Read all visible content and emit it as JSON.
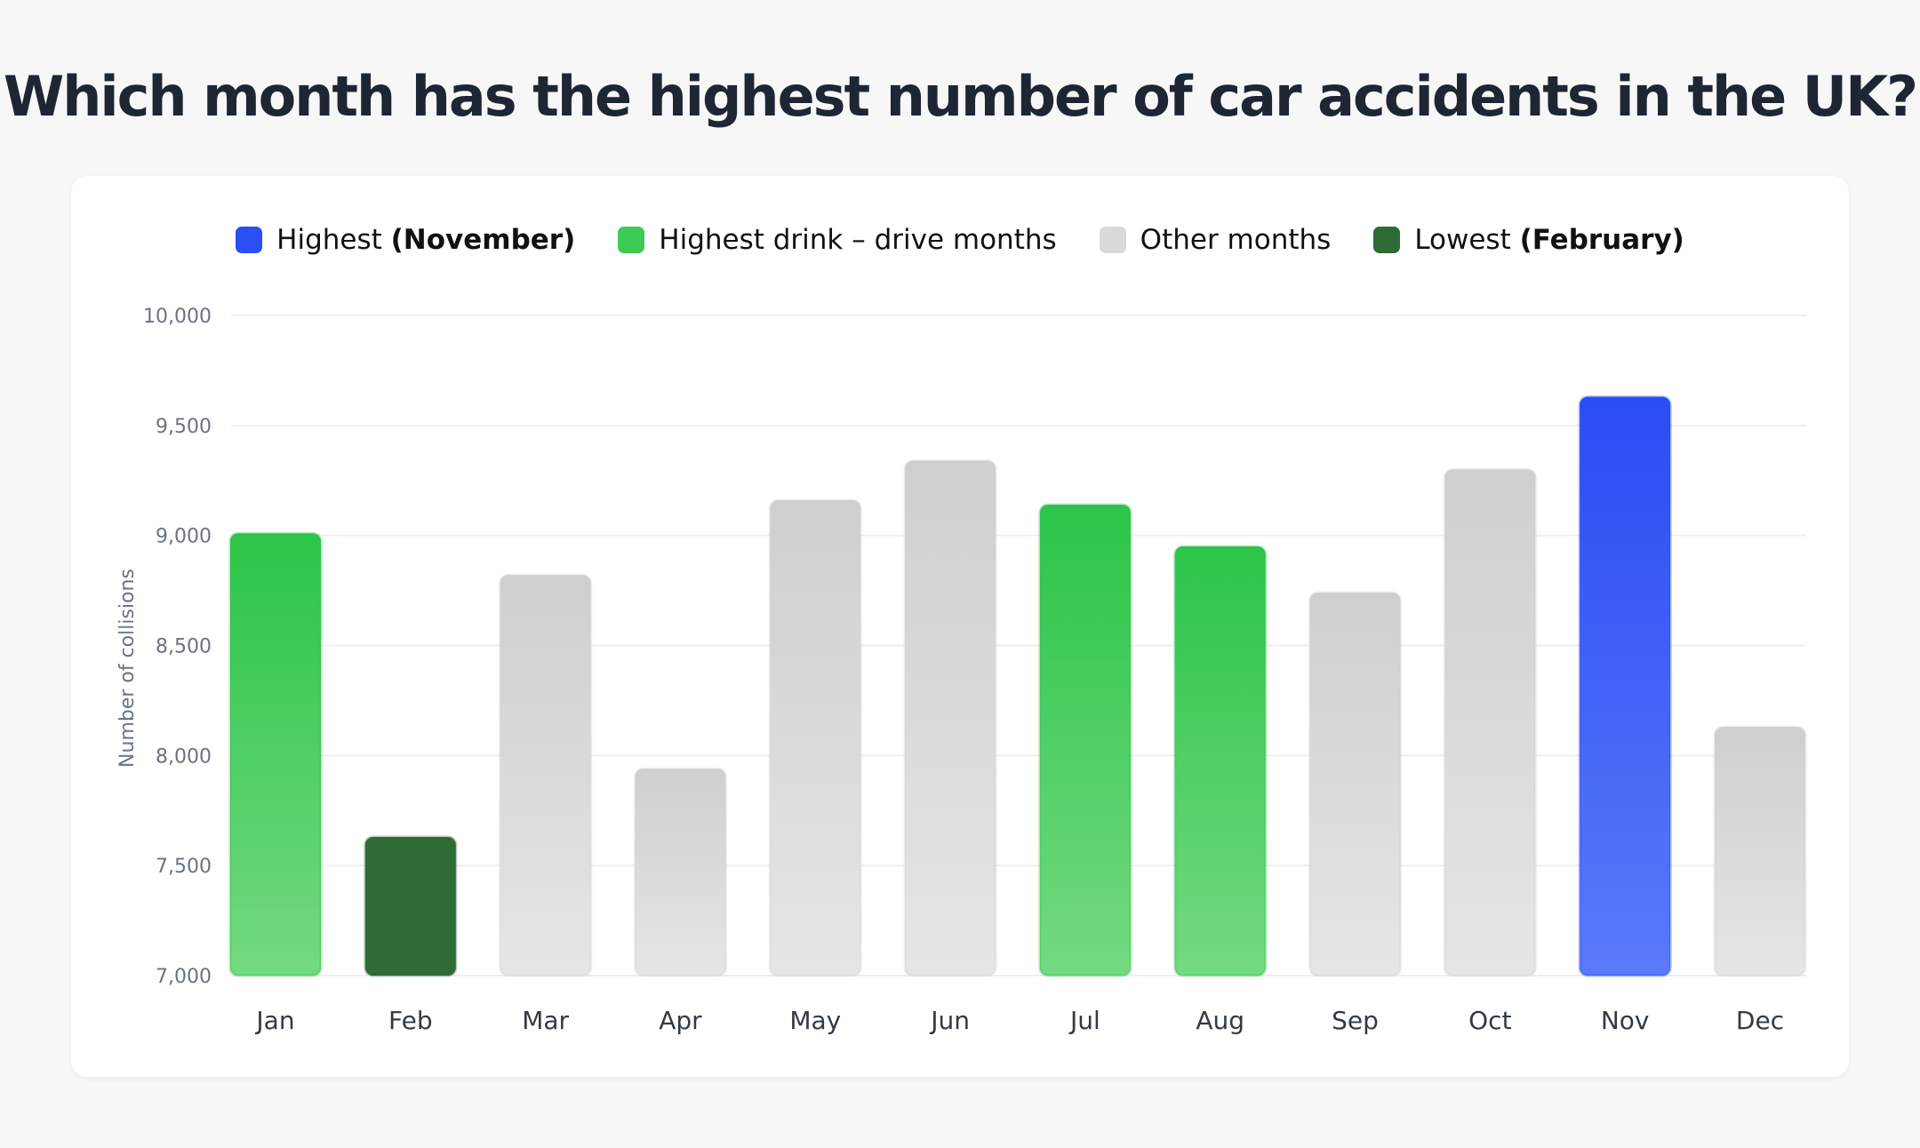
{
  "title": "Which month has the highest number of car accidents in the UK?",
  "legend": [
    {
      "label": "Highest ",
      "bold": "(November)",
      "color": "#2b4ef5"
    },
    {
      "label": "Highest drink – drive months",
      "bold": "",
      "color": "#3ecb55"
    },
    {
      "label": "Other months",
      "bold": "",
      "color": "#d9d9d9"
    },
    {
      "label": "Lowest ",
      "bold": "(February)",
      "color": "#2e6b35"
    }
  ],
  "chart_data": {
    "type": "bar",
    "title": "Which month has the highest number of car accidents in the UK?",
    "xlabel": "",
    "ylabel": "Number of collisions",
    "ylim": [
      7000,
      10000
    ],
    "yticks": [
      "7,000",
      "7,500",
      "8,000",
      "8,500",
      "9,000",
      "9,500",
      "10,000"
    ],
    "grid": true,
    "legend_position": "top",
    "categories": [
      "Jan",
      "Feb",
      "Mar",
      "Apr",
      "May",
      "Jun",
      "Jul",
      "Aug",
      "Sep",
      "Oct",
      "Nov",
      "Dec"
    ],
    "values": [
      9010,
      7630,
      8820,
      7940,
      9160,
      9340,
      9140,
      8950,
      8740,
      9300,
      9630,
      8130
    ],
    "groups": [
      "drink",
      "lowest",
      "other",
      "other",
      "other",
      "other",
      "drink",
      "drink",
      "other",
      "other",
      "highest",
      "other"
    ],
    "colors": {
      "highest": [
        "#2a4cf4",
        "#5a7af8"
      ],
      "drink": [
        "#2bc449",
        "#74da80"
      ],
      "other": [
        "#cfcfcf",
        "#e6e6e6"
      ],
      "lowest": [
        "#2e6b35",
        "#2e6b35"
      ]
    }
  }
}
